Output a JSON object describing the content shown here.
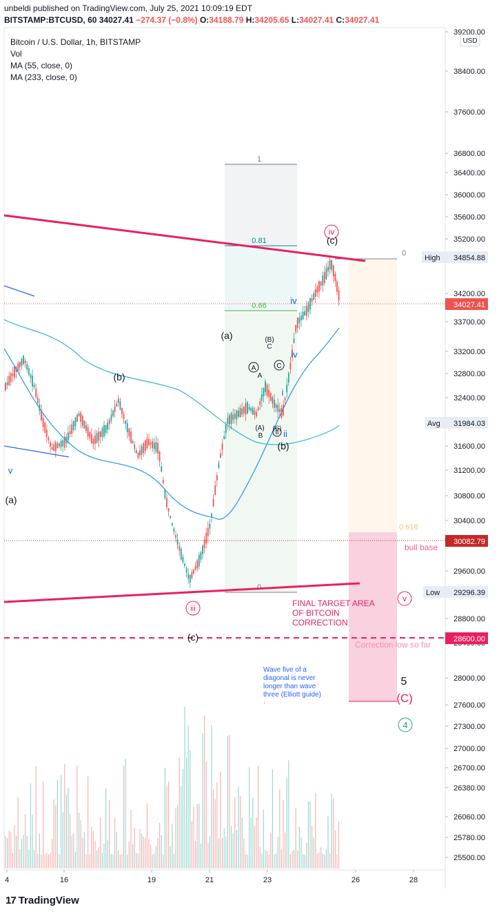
{
  "header": {
    "author": "unbeldi",
    "published_text": "published on TradingView.com, July 25, 2021 10:09:19 EDT",
    "symbol": "BITSTAMP:BTCUSD, 60",
    "price": "34027.41",
    "change": "−274.37 (−0.8%)",
    "ohlc": {
      "o_label": "O:",
      "o": "34188.79",
      "h_label": "H:",
      "h": "34205.65",
      "l_label": "L:",
      "l": "34027.41",
      "c_label": "C:",
      "c": "34027.41"
    }
  },
  "legend": {
    "title": "Bitcoin / U.S. Dollar, 1h, BITSTAMP",
    "vol": "Vol",
    "ma55": "MA (55, close, 0)",
    "ma233": "MA (233, close, 0)"
  },
  "colors": {
    "up": "#26a69a",
    "down": "#ef5350",
    "ma55": "#2196f3",
    "ma233": "#2bb5d6",
    "trendline": "#e91e63",
    "wave_blue": "#1e5fd6",
    "target": "#f48fb1"
  },
  "chart_data": {
    "type": "candlestick",
    "x_ticks": [
      "4",
      "16",
      "19",
      "21",
      "23",
      "26",
      "28"
    ],
    "y_ticks": [
      "39200.00",
      "38400.00",
      "37600.00",
      "36800.00",
      "36400.00",
      "36000.00",
      "35600.00",
      "35200.00",
      "34700.00",
      "34200.00",
      "33700.00",
      "33200.00",
      "32800.00",
      "32400.00",
      "32000.00",
      "31600.00",
      "31200.00",
      "30800.00",
      "30400.00",
      "30000.00",
      "29600.00",
      "29200.00",
      "28800.00",
      "28400.00",
      "28000.00",
      "27600.00",
      "27300.00",
      "27000.00",
      "26700.00",
      "26380.00",
      "26060.00",
      "25780.00",
      "25500.00"
    ],
    "currency": "USD",
    "price_labels": [
      {
        "label": "High",
        "value": "34854.88"
      },
      {
        "label": "",
        "value": "34027.41"
      },
      {
        "label": "Avg",
        "value": "31984.03"
      },
      {
        "label": "",
        "value": "30082.79"
      },
      {
        "label": "Low",
        "value": "29296.39"
      },
      {
        "label": "",
        "value": "28600.00"
      }
    ],
    "fib": [
      {
        "level": "1"
      },
      {
        "level": "0.81"
      },
      {
        "level": "0.66"
      },
      {
        "level": "0"
      },
      {
        "level": "0.618"
      }
    ],
    "wave_labels": {
      "iv_circle": "iv",
      "c_paren": "(c)",
      "iii_circle": "iii",
      "c_paren_low": "(c)",
      "v_circle": "v",
      "a_paren": "(a)",
      "a_paren_left": "(a)",
      "b_paren": "(b)",
      "b_paren_mid": "(b)",
      "v_blue": "v",
      "iv_blue": "iv",
      "iv_blue_top": "iv",
      "i_blue": "i",
      "ii_blue": "ii",
      "A_circ": "A",
      "A": "A",
      "B_paren": "(B)",
      "C": "C",
      "C_circ": "C",
      "A_paren": "(A)",
      "B": "B",
      "C_paren": "(C)",
      "B_circ": "B",
      "five": "5",
      "C_big": "(C)",
      "four_circle": "4"
    },
    "annotations": {
      "bull_base": "bull base",
      "final_target_1": "FINAL TARGET AREA",
      "final_target_2": "OF BITCOIN",
      "final_target_3": "CORRECTION",
      "correction_low": "Correction low so far",
      "wave_note_1": "Wave five of a",
      "wave_note_2": "diagonal is never",
      "wave_note_3": "longer than wave",
      "wave_note_4": "three (Elliott guide)",
      "wave_note_5": "."
    }
  },
  "footer": {
    "brand": "TradingView",
    "logo_icon": "tradingview-logo-icon"
  }
}
